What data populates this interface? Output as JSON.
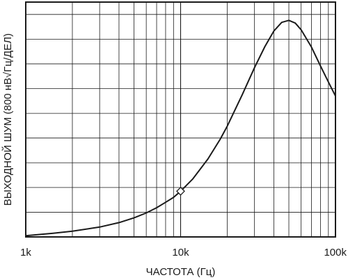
{
  "chart_data": {
    "type": "line",
    "title": "",
    "xlabel": "ЧАСТОТА (Гц)",
    "ylabel": "ВЫХОДНОЙ ШУМ (800 нВ√Гц/ДЕЛ)",
    "x_scale": "log",
    "xlim": [
      1000,
      100000
    ],
    "ylim": [
      0,
      9.5
    ],
    "x_ticks": [
      1000,
      10000,
      100000
    ],
    "x_tick_labels": [
      "1k",
      "10k",
      "100k"
    ],
    "y_tick_labels": [],
    "y_divisions": 9.5,
    "grid": true,
    "line_color": "#1a1a1a",
    "series": [
      {
        "x": [
          1000,
          1500,
          2000,
          3000,
          4000,
          5000,
          6000,
          7000,
          8000,
          9000,
          10000,
          12000,
          15000,
          18000,
          20000,
          25000,
          30000,
          35000,
          40000,
          45000,
          50000,
          55000,
          60000,
          70000,
          80000,
          90000,
          100000
        ],
        "y": [
          0.05,
          0.15,
          0.23,
          0.4,
          0.58,
          0.77,
          0.97,
          1.18,
          1.4,
          1.6,
          1.85,
          2.35,
          3.15,
          3.95,
          4.48,
          5.75,
          6.85,
          7.7,
          8.33,
          8.68,
          8.76,
          8.65,
          8.38,
          7.68,
          6.92,
          6.27,
          5.7
        ]
      }
    ],
    "annotations": [
      {
        "type": "marker",
        "shape": "diamond",
        "x": 10000,
        "y": 1.85
      }
    ]
  }
}
